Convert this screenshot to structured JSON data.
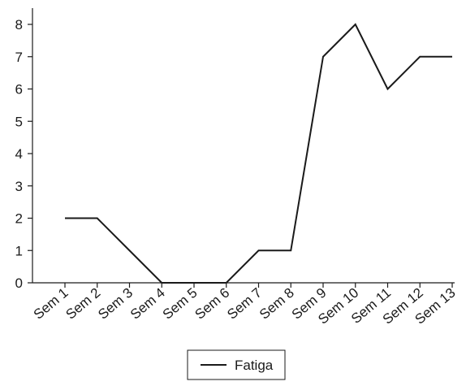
{
  "chart_data": {
    "type": "line",
    "categories": [
      "Sem 1",
      "Sem 2",
      "Sem 3",
      "Sem 4",
      "Sem 5",
      "Sem 6",
      "Sem 7",
      "Sem 8",
      "Sem 9",
      "Sem 10",
      "Sem 11",
      "Sem 12",
      "Sem 13"
    ],
    "series": [
      {
        "name": "Fatiga",
        "values": [
          2,
          2,
          1,
          0,
          0,
          0,
          1,
          1,
          7,
          8,
          6,
          7,
          7
        ],
        "color": "#1a1a1a"
      }
    ],
    "y_ticks": [
      "0",
      "1",
      "2",
      "3",
      "4",
      "5",
      "6",
      "7",
      "8"
    ],
    "ylim": [
      0,
      8
    ],
    "title": "",
    "xlabel": "",
    "ylabel": "",
    "grid": false,
    "legend_position": "bottom-center"
  }
}
